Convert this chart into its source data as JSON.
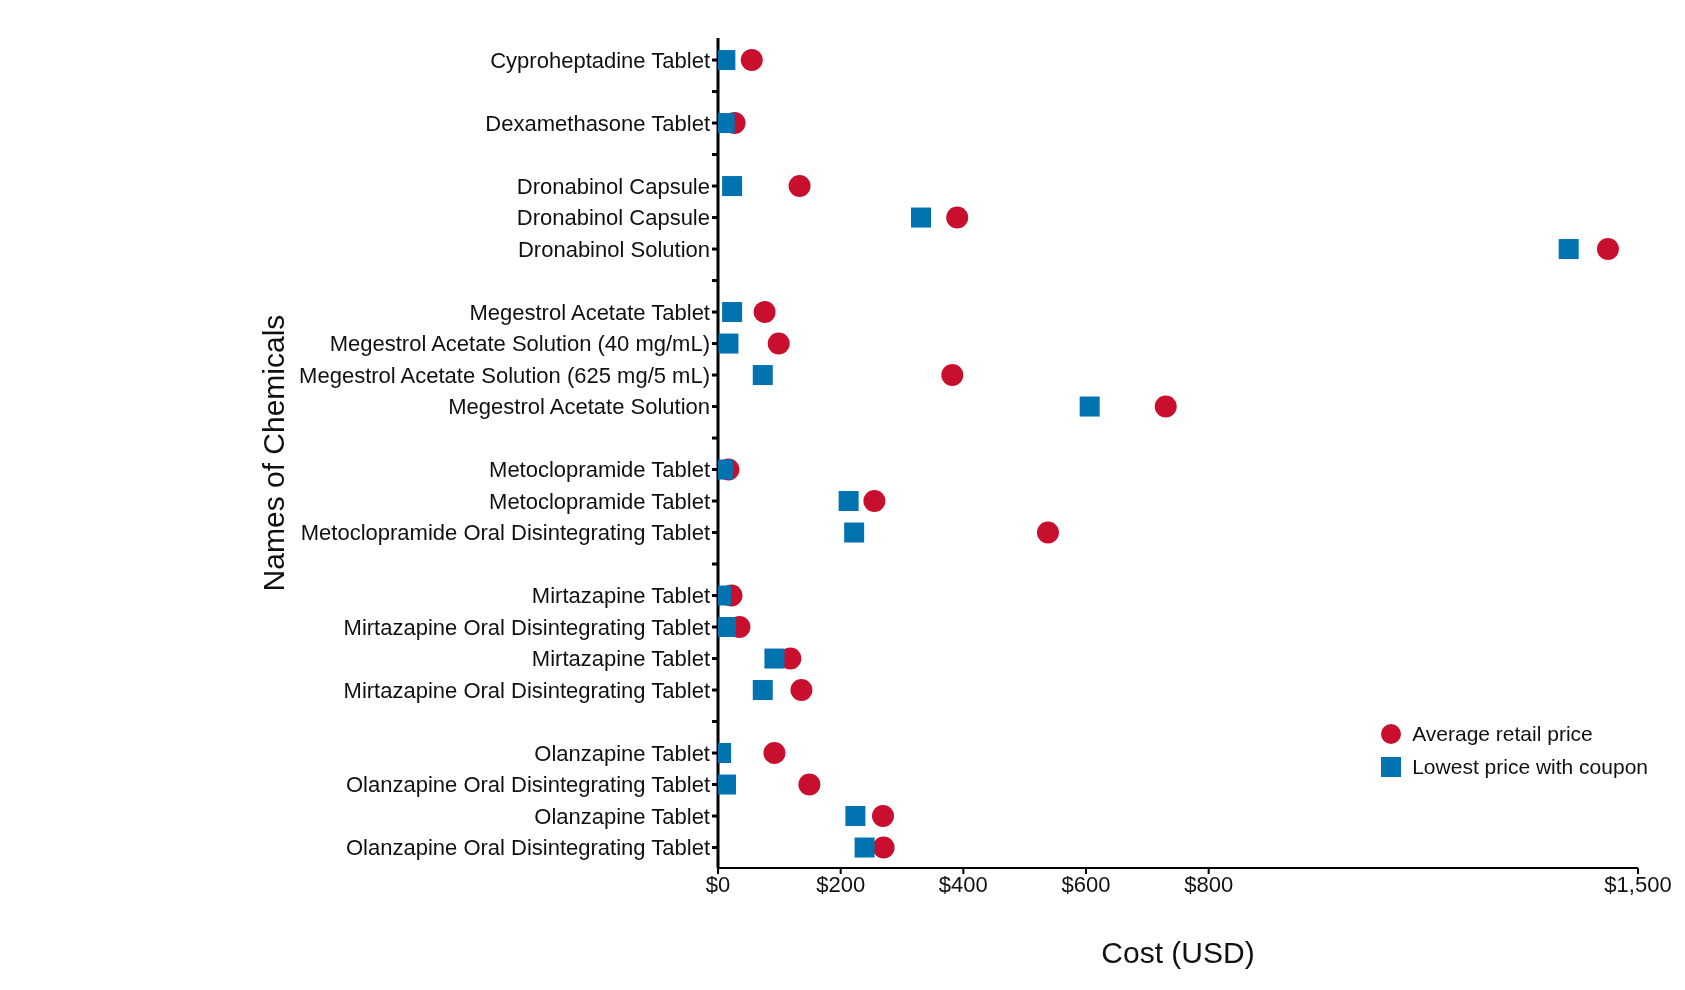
{
  "chart_data": {
    "type": "scatter",
    "xlabel": "Cost (USD)",
    "ylabel": "Names of Chemicals",
    "categories": [
      "Cyproheptadine Tablet",
      null,
      "Dexamethasone Tablet",
      null,
      "Dronabinol Capsule",
      "Dronabinol Capsule",
      "Dronabinol Solution",
      null,
      "Megestrol Acetate Tablet",
      "Megestrol Acetate Solution (40 mg/mL)",
      "Megestrol Acetate Solution (625 mg/5 mL)",
      "Megestrol Acetate Solution",
      null,
      "Metoclopramide Tablet",
      "Metoclopramide Tablet",
      "Metoclopramide Oral Disintegrating Tablet",
      null,
      "Mirtazapine Tablet",
      "Mirtazapine Oral Disintegrating Tablet",
      "Mirtazapine Tablet",
      "Mirtazapine Oral Disintegrating Tablet",
      null,
      "Olanzapine Tablet",
      "Olanzapine Oral Disintegrating Tablet",
      "Olanzapine Tablet",
      "Olanzapine Oral Disintegrating Tablet"
    ],
    "series": [
      {
        "name": "Average retail price",
        "color": "#c8102e",
        "marker": "circle",
        "values": [
          55,
          null,
          27,
          null,
          133,
          390,
          1451,
          null,
          76,
          99,
          382,
          730,
          null,
          17,
          255,
          538,
          null,
          22,
          35,
          118,
          136,
          null,
          92,
          149,
          269,
          270
        ]
      },
      {
        "name": "Lowest price with coupon",
        "color": "#0073b0",
        "marker": "square",
        "values": [
          12,
          null,
          11,
          null,
          23,
          331,
          1387,
          null,
          23,
          17,
          73,
          606,
          null,
          8,
          213,
          222,
          null,
          5,
          13,
          92,
          73,
          null,
          5,
          13,
          224,
          239
        ]
      }
    ],
    "xlim": [
      0,
      1500
    ],
    "xticks": [
      {
        "value": 0,
        "label": "$0"
      },
      {
        "value": 200,
        "label": "$200"
      },
      {
        "value": 400,
        "label": "$400"
      },
      {
        "value": 600,
        "label": "$600"
      },
      {
        "value": 800,
        "label": "$800"
      },
      {
        "value": 1500,
        "label": "$1,500"
      }
    ],
    "grid": false,
    "legend": "bottom right",
    "orientation": "horizontal"
  }
}
